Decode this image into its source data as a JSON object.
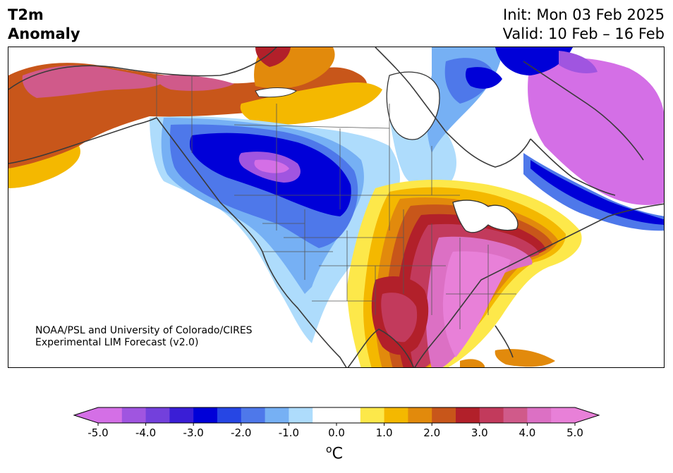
{
  "title": {
    "left_line1": "T2m",
    "left_line2": "Anomaly",
    "right_line1": "Init: Mon 03 Feb 2025",
    "right_line2": "Valid: 10 Feb – 16 Feb"
  },
  "credit": {
    "line1": "NOAA/PSL and University of Colorado/CIRES",
    "line2": "Experimental LIM Forecast (v2.0)"
  },
  "colorbar": {
    "unit_sup": "o",
    "unit_main": "C",
    "tick_labels": [
      "-5.0",
      "-4.0",
      "-3.0",
      "-2.0",
      "-1.0",
      "0.0",
      "1.0",
      "2.0",
      "3.0",
      "4.0",
      "5.0"
    ],
    "bin_colors": [
      "#d46fe6",
      "#a055e0",
      "#7340dc",
      "#3a1ed6",
      "#0000d8",
      "#2646e4",
      "#4e78ea",
      "#76b0f4",
      "#aedcfc",
      "#ffffff",
      "#ffffff",
      "#fde84a",
      "#f4b800",
      "#e28a0c",
      "#c8561a",
      "#b2202a",
      "#c23a5c",
      "#d05a8a",
      "#dc70c4",
      "#e880d8"
    ],
    "low_extend_color": "#d46fe6",
    "high_extend_color": "#e880d8"
  },
  "map": {
    "region": "North America",
    "regions": [
      {
        "name": "alaska-warm-anomaly",
        "color": "#c8561a"
      },
      {
        "name": "alaska-hot-core",
        "color": "#d05a8a"
      },
      {
        "name": "yukon-warm",
        "color": "#f4b800"
      },
      {
        "name": "nw-cold-anomaly",
        "color": "#4e78ea"
      },
      {
        "name": "nw-cold-core",
        "color": "#0000d8"
      },
      {
        "name": "nw-cold-center",
        "color": "#a055e0"
      },
      {
        "name": "east-warm-anomaly",
        "color": "#f4b800"
      },
      {
        "name": "east-hot-core",
        "color": "#c23a5c"
      },
      {
        "name": "southeast-hot",
        "color": "#dc70c4"
      },
      {
        "name": "hudson-cold",
        "color": "#4e78ea"
      },
      {
        "name": "labrador-cold",
        "color": "#0000d8"
      },
      {
        "name": "greenland-warm",
        "color": "#d46fe6"
      },
      {
        "name": "texas-hot",
        "color": "#b2202a"
      }
    ]
  }
}
